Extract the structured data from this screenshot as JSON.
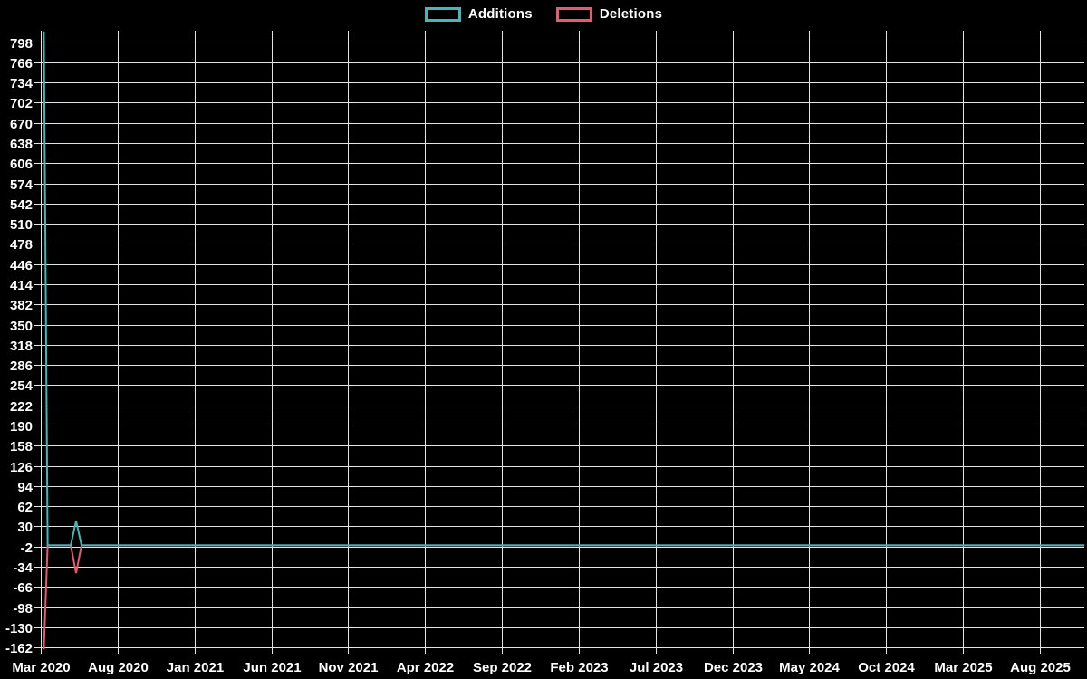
{
  "chart_data": {
    "type": "line",
    "title": "",
    "background_color": "#000000",
    "grid_color": "#e3e3e3",
    "text_color": "#ffffff",
    "grid": true,
    "legend_position": "top-center",
    "x_tick_labels": [
      "Mar 2020",
      "Aug 2020",
      "Jan 2021",
      "Jun 2021",
      "Nov 2021",
      "Apr 2022",
      "Sep 2022",
      "Feb 2023",
      "Jul 2023",
      "Dec 2023",
      "May 2024",
      "Oct 2024",
      "Mar 2025",
      "Aug 2025"
    ],
    "x_tick_interval_months": 5,
    "x_range_months": [
      0,
      67.9
    ],
    "y_ticks": [
      798,
      766,
      734,
      702,
      670,
      638,
      606,
      574,
      542,
      510,
      478,
      446,
      414,
      382,
      350,
      318,
      286,
      254,
      222,
      190,
      158,
      126,
      94,
      62,
      30,
      -2,
      -34,
      -66,
      -98,
      -130,
      -162
    ],
    "y_range": [
      -166,
      816
    ],
    "series": [
      {
        "name": "Deletions",
        "color": "#e85a73",
        "points": [
          {
            "x_months": 0.2,
            "value": -165
          },
          {
            "x_months": 0.45,
            "value": 0
          },
          {
            "x_months": 1.95,
            "value": 0
          },
          {
            "x_months": 2.3,
            "value": -44
          },
          {
            "x_months": 2.65,
            "value": 0
          },
          {
            "x_months": 67.9,
            "value": 0
          }
        ]
      },
      {
        "name": "Additions",
        "color": "#45b7b7",
        "points": [
          {
            "x_months": 0.2,
            "value": 815
          },
          {
            "x_months": 0.45,
            "value": 0
          },
          {
            "x_months": 1.95,
            "value": 0
          },
          {
            "x_months": 2.3,
            "value": 39
          },
          {
            "x_months": 2.65,
            "value": 0
          },
          {
            "x_months": 67.9,
            "value": 0
          }
        ]
      }
    ],
    "legend_order": [
      "Additions",
      "Deletions"
    ]
  }
}
